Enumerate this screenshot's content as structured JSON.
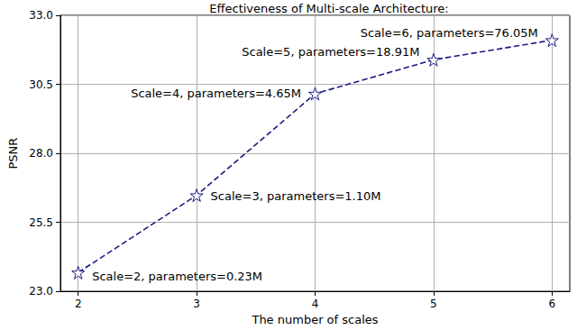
{
  "chart_data": {
    "type": "line",
    "title": "Effectiveness of Multi-scale Architecture:",
    "x_label": "The number of scales",
    "y_label": "PSNR",
    "x": [
      2,
      3,
      4,
      5,
      6
    ],
    "values": [
      23.68,
      26.48,
      30.16,
      31.39,
      32.1
    ],
    "annotations": [
      "Scale=2, parameters=0.23M",
      "Scale=3, parameters=1.10M",
      "Scale=4, parameters=4.65M",
      "Scale=5, parameters=18.91M",
      "Scale=6, parameters=76.05M"
    ],
    "color": "#1a1a80",
    "marker": "star",
    "line_style": "dashed",
    "xlim": [
      1.85,
      6.15
    ],
    "xticks": [
      2,
      3,
      4,
      5,
      6
    ],
    "ylim": [
      23,
      33
    ],
    "yticks": [
      {
        "value": 23,
        "label": "23.0"
      },
      25.5,
      {
        "value": 28,
        "label": "28.0"
      },
      30.5,
      {
        "value": 33,
        "label": "33.0"
      }
    ],
    "grid": true
  }
}
